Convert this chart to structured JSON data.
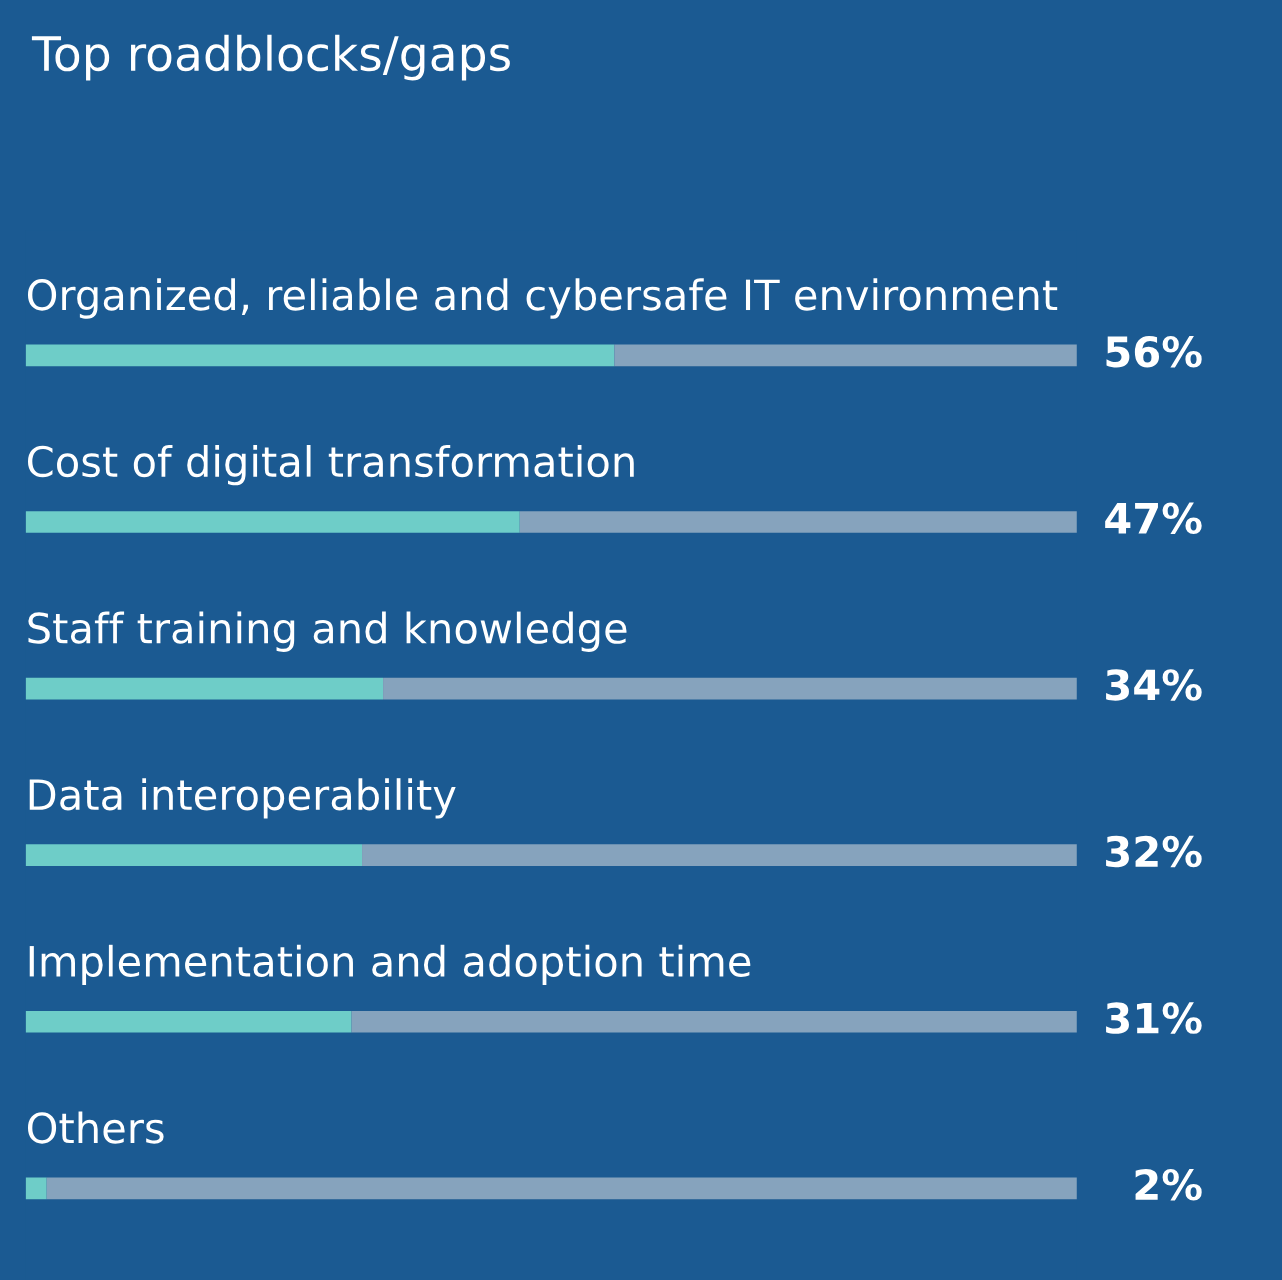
{
  "chart_data": {
    "type": "bar",
    "orientation": "horizontal",
    "stacked": true,
    "title": "Top roadblocks/gaps",
    "categories": [
      "Organized, reliable and cybersafe IT environment",
      "Cost of digital transformation",
      "Staff training and knowledge",
      "Data interoperability",
      "Implementation and adoption time",
      "Others"
    ],
    "series": [
      {
        "color": "#6ecdc8",
        "values": [
          56,
          47,
          34,
          32,
          31,
          2
        ],
        "value_labels": [
          "56%",
          "47%",
          "34%",
          "32%",
          "31%",
          "2%"
        ]
      },
      {
        "color": "#86a3bd",
        "values": [
          44,
          53,
          66,
          68,
          69,
          98
        ]
      }
    ],
    "xlim": [
      0,
      100
    ]
  }
}
